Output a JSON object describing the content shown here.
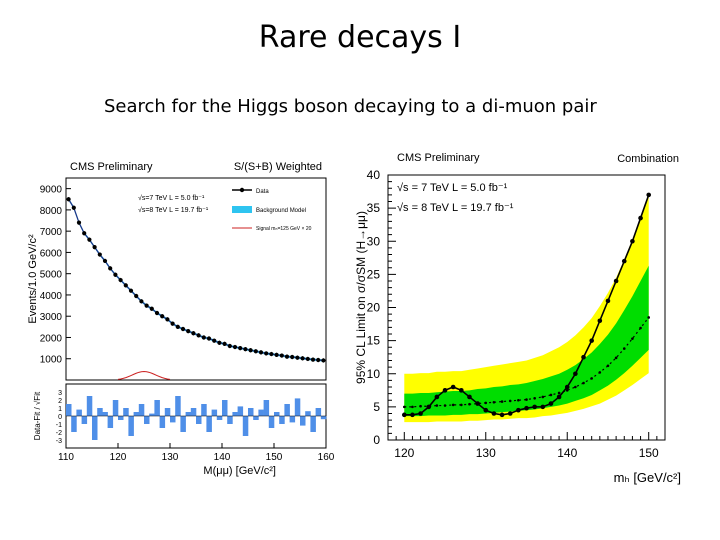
{
  "slide": {
    "title": "Rare decays I",
    "subtitle": "Search for the Higgs boson decaying to a di-muon pair"
  },
  "colors": {
    "data": "#000000",
    "background_model": "#2ec4f0",
    "signal": "#cc2222",
    "residual_fill": "#4f8fe8",
    "band_2sigma": "#ffff00",
    "band_1sigma": "#00dd00"
  },
  "chart_data": [
    {
      "type": "scatter",
      "header_left": "CMS Preliminary",
      "header_right": "S/(S+B) Weighted",
      "xlabel": "M(μμ) [GeV/c²]",
      "ylabel": "Events/1.0 GeV/c²",
      "xlim": [
        110,
        160
      ],
      "ylim": [
        0,
        9500
      ],
      "x_ticks": [
        "110",
        "120",
        "130",
        "140",
        "150",
        "160"
      ],
      "y_ticks": [
        "1000",
        "2000",
        "3000",
        "4000",
        "5000",
        "6000",
        "7000",
        "8000",
        "9000"
      ],
      "legend": {
        "energy_7": "√s=7 TeV L = 5.0 fb⁻¹",
        "energy_8": "√s=8 TeV L = 19.7 fb⁻¹",
        "items": [
          "Data",
          "Background Model",
          "Signal mₕ=125 GeV × 20"
        ]
      },
      "data": {
        "x": [
          110.5,
          111.5,
          112.5,
          113.5,
          114.5,
          115.5,
          116.5,
          117.5,
          118.5,
          119.5,
          120.5,
          121.5,
          122.5,
          123.5,
          124.5,
          125.5,
          126.5,
          127.5,
          128.5,
          129.5,
          130.5,
          131.5,
          132.5,
          133.5,
          134.5,
          135.5,
          136.5,
          137.5,
          138.5,
          139.5,
          140.5,
          141.5,
          142.5,
          143.5,
          144.5,
          145.5,
          146.5,
          147.5,
          148.5,
          149.5,
          150.5,
          151.5,
          152.5,
          153.5,
          154.5,
          155.5,
          156.5,
          157.5,
          158.5,
          159.5
        ],
        "y": [
          8500,
          8100,
          7400,
          6900,
          6600,
          6250,
          5900,
          5600,
          5250,
          4950,
          4700,
          4450,
          4200,
          3950,
          3700,
          3500,
          3350,
          3150,
          3000,
          2850,
          2650,
          2500,
          2400,
          2300,
          2200,
          2100,
          2000,
          1950,
          1850,
          1750,
          1700,
          1600,
          1550,
          1500,
          1450,
          1400,
          1350,
          1300,
          1250,
          1220,
          1180,
          1150,
          1100,
          1080,
          1050,
          1020,
          990,
          960,
          940,
          920
        ]
      },
      "signal": {
        "peak_x": 125,
        "peak_y": 400
      },
      "residual_panel": {
        "ylabel": "Data-Fit / √Fit",
        "ylim": [
          -4,
          4
        ],
        "y_ticks": [
          "3",
          "2",
          "1",
          "0",
          "-1",
          "-2",
          "-3"
        ],
        "values": [
          1.5,
          -2.0,
          0.8,
          -1.0,
          2.5,
          -3.0,
          1.0,
          0.5,
          -1.5,
          2.0,
          -0.5,
          1.0,
          -2.5,
          0.5,
          1.5,
          -1.0,
          0.3,
          2.0,
          -1.5,
          1.0,
          -0.8,
          2.5,
          -2.0,
          0.5,
          1.0,
          -1.0,
          1.5,
          -2.0,
          0.8,
          -0.5,
          2.0,
          -1.0,
          0.5,
          1.2,
          -2.5,
          1.0,
          -0.5,
          0.8,
          2.0,
          -1.5,
          0.5,
          -1.0,
          1.5,
          -0.8,
          2.2,
          -1.2,
          0.6,
          -2.0,
          1.0,
          -0.4
        ]
      }
    },
    {
      "type": "line",
      "header_left": "CMS Preliminary",
      "header_right": "Combination",
      "xlabel": "mₕ [GeV/c²]",
      "ylabel": "95% CL Limit on σ/σSM (H→μμ)",
      "xlim": [
        118,
        152
      ],
      "ylim": [
        0,
        40
      ],
      "x_ticks": [
        "120",
        "130",
        "140",
        "150"
      ],
      "y_ticks": [
        "0",
        "5",
        "10",
        "15",
        "20",
        "25",
        "30",
        "35",
        "40"
      ],
      "legend": {
        "energy_7": "√s = 7 TeV L = 5.0 fb⁻¹",
        "energy_8": "√s = 8 TeV L = 19.7 fb⁻¹"
      },
      "x": [
        120,
        121,
        122,
        123,
        124,
        125,
        126,
        127,
        128,
        129,
        130,
        131,
        132,
        133,
        134,
        135,
        136,
        137,
        138,
        139,
        140,
        141,
        142,
        143,
        144,
        145,
        146,
        147,
        148,
        149,
        150
      ],
      "observed": [
        3.8,
        3.8,
        4.0,
        5.0,
        6.5,
        7.5,
        8.0,
        7.5,
        6.5,
        5.5,
        4.5,
        4.0,
        3.8,
        4.0,
        4.5,
        4.8,
        5.0,
        5.0,
        5.5,
        6.5,
        8.0,
        10.0,
        12.5,
        15.0,
        18.0,
        21.0,
        24.0,
        27.0,
        30.0,
        33.5,
        37.0
      ],
      "expected": [
        5.0,
        5.0,
        5.1,
        5.1,
        5.2,
        5.2,
        5.3,
        5.3,
        5.4,
        5.5,
        5.6,
        5.7,
        5.8,
        5.9,
        6.0,
        6.1,
        6.3,
        6.5,
        6.8,
        7.1,
        7.5,
        8.0,
        8.6,
        9.3,
        10.2,
        11.2,
        12.4,
        13.8,
        15.3,
        16.9,
        18.5
      ],
      "band_1sigma_low": [
        3.6,
        3.6,
        3.6,
        3.7,
        3.7,
        3.7,
        3.8,
        3.8,
        3.9,
        3.9,
        4.0,
        4.1,
        4.2,
        4.3,
        4.4,
        4.5,
        4.6,
        4.8,
        5.0,
        5.2,
        5.5,
        5.9,
        6.3,
        6.8,
        7.5,
        8.2,
        9.1,
        10.1,
        11.2,
        12.4,
        13.6
      ],
      "band_1sigma_high": [
        7.0,
        7.0,
        7.1,
        7.1,
        7.2,
        7.3,
        7.4,
        7.4,
        7.5,
        7.7,
        7.8,
        8.0,
        8.1,
        8.3,
        8.4,
        8.6,
        8.9,
        9.2,
        9.6,
        10.0,
        10.6,
        11.3,
        12.2,
        13.2,
        14.5,
        15.9,
        17.6,
        19.6,
        21.7,
        24.0,
        26.3
      ],
      "band_2sigma_low": [
        2.7,
        2.7,
        2.7,
        2.7,
        2.8,
        2.8,
        2.8,
        2.8,
        2.9,
        2.9,
        3.0,
        3.1,
        3.1,
        3.2,
        3.3,
        3.3,
        3.4,
        3.6,
        3.7,
        3.9,
        4.1,
        4.4,
        4.7,
        5.1,
        5.5,
        6.1,
        6.7,
        7.5,
        8.3,
        9.2,
        10.1
      ],
      "band_2sigma_high": [
        10.0,
        10.0,
        10.1,
        10.1,
        10.3,
        10.3,
        10.4,
        10.4,
        10.6,
        10.8,
        11.0,
        11.2,
        11.4,
        11.6,
        11.8,
        12.0,
        12.4,
        12.8,
        13.4,
        14.0,
        14.8,
        15.8,
        17.0,
        18.4,
        20.2,
        22.2,
        24.5,
        27.3,
        30.3,
        33.5,
        36.8
      ]
    }
  ]
}
